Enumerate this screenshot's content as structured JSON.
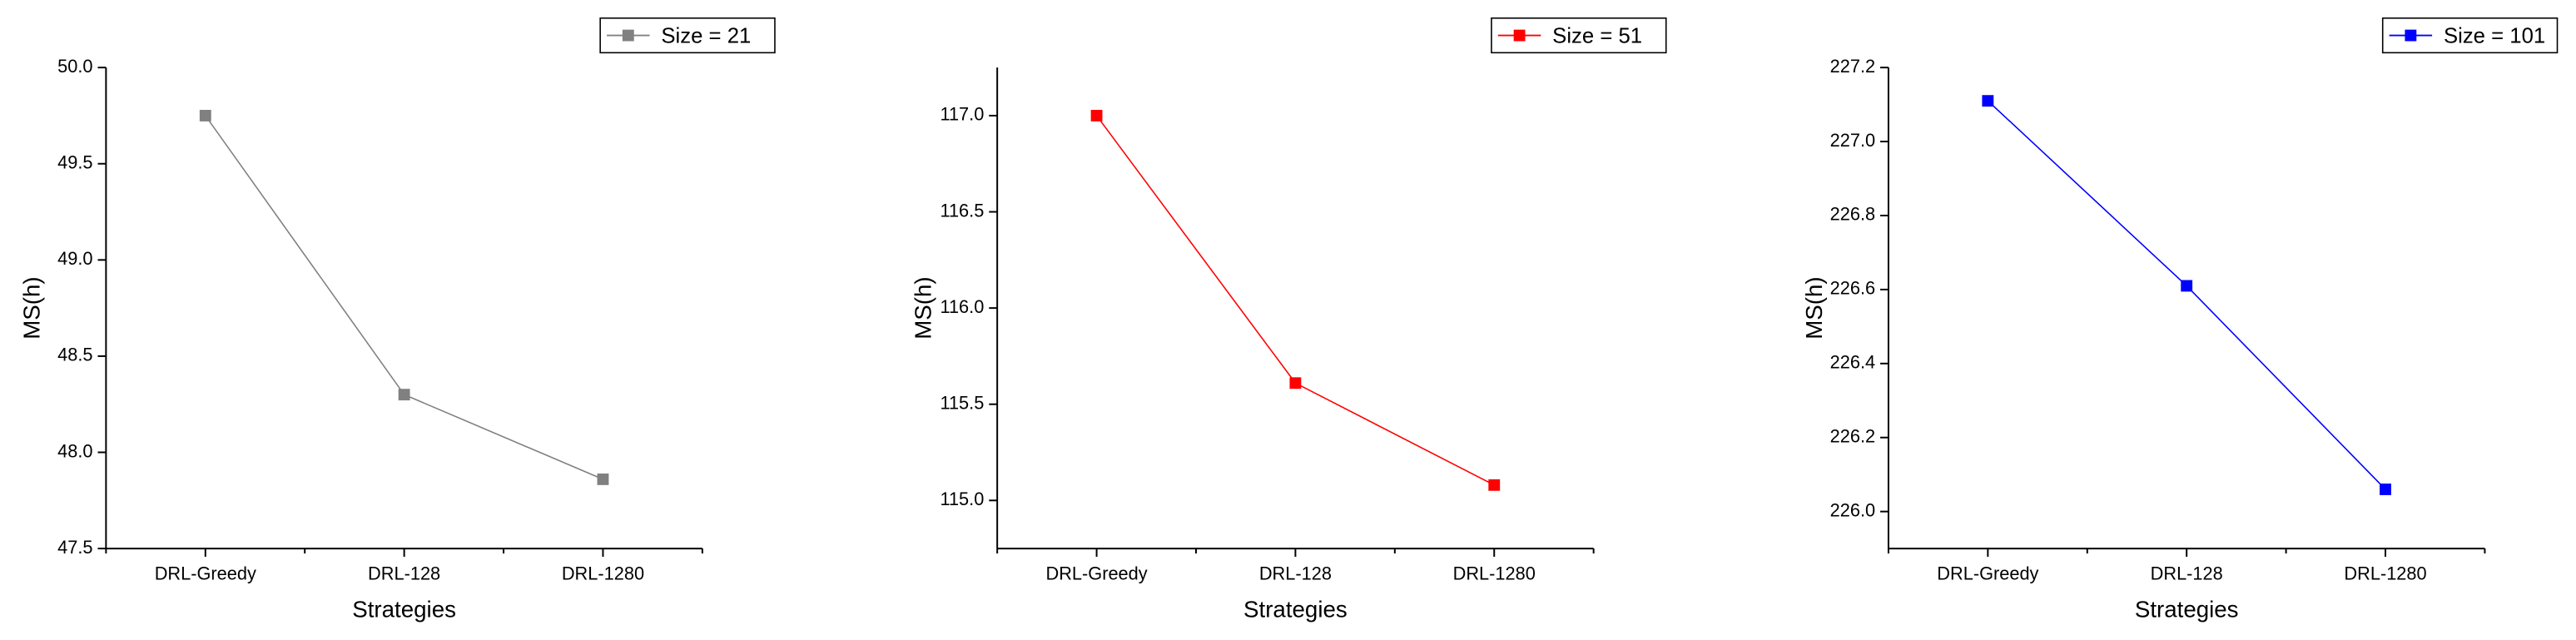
{
  "chart_data": [
    {
      "type": "line",
      "xlabel": "Strategies",
      "ylabel": "MS(h)",
      "categories": [
        "DRL-Greedy",
        "DRL-128",
        "DRL-1280"
      ],
      "series": [
        {
          "name": "Size = 21",
          "color": "#808080",
          "values": [
            49.75,
            48.3,
            47.86
          ]
        }
      ],
      "ylim": [
        47.5,
        50.0
      ],
      "yticks": [
        47.5,
        {
          "value": 48,
          "label": "48.0"
        },
        48.5,
        {
          "value": 49,
          "label": "49.0"
        },
        49.5,
        {
          "value": 50,
          "label": "50.0"
        }
      ]
    },
    {
      "type": "line",
      "xlabel": "Strategies",
      "ylabel": "MS(h)",
      "categories": [
        "DRL-Greedy",
        "DRL-128",
        "DRL-1280"
      ],
      "series": [
        {
          "name": "Size = 51",
          "color": "#ff0000",
          "values": [
            117.0,
            115.61,
            115.08
          ]
        }
      ],
      "ylim": [
        114.75,
        117.25
      ],
      "yticks": [
        {
          "value": 115,
          "label": "115.0"
        },
        115.5,
        {
          "value": 116,
          "label": "116.0"
        },
        116.5,
        {
          "value": 117,
          "label": "117.0"
        }
      ]
    },
    {
      "type": "line",
      "xlabel": "Strategies",
      "ylabel": "MS(h)",
      "categories": [
        "DRL-Greedy",
        "DRL-128",
        "DRL-1280"
      ],
      "series": [
        {
          "name": "Size = 101",
          "color": "#0000ff",
          "values": [
            227.11,
            226.61,
            226.06
          ]
        }
      ],
      "ylim": [
        225.9,
        227.2
      ],
      "yticks": [
        {
          "value": 226,
          "label": "226.0"
        },
        226.2,
        226.4,
        226.6,
        226.8,
        {
          "value": 227,
          "label": "227.0"
        },
        227.2
      ]
    }
  ]
}
